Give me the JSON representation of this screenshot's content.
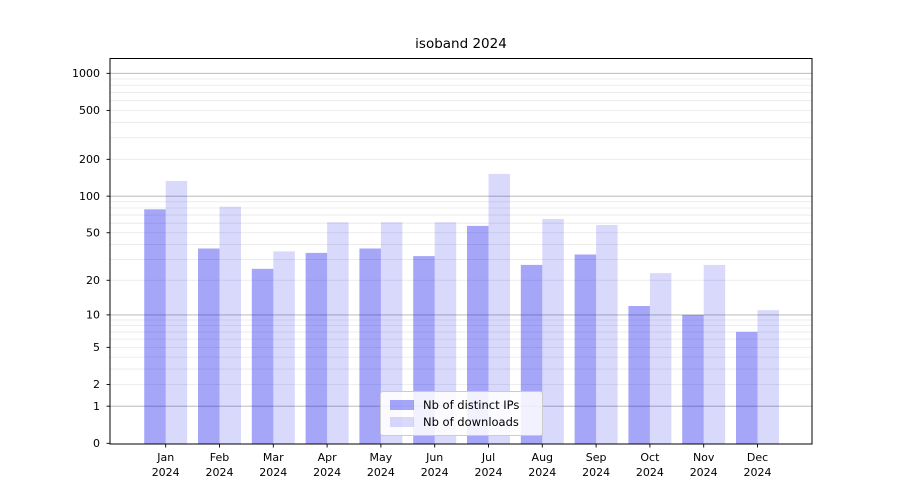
{
  "chart_data": {
    "type": "bar",
    "title": "isoband 2024",
    "categories": [
      "Jan 2024",
      "Feb 2024",
      "Mar 2024",
      "Apr 2024",
      "May 2024",
      "Jun 2024",
      "Jul 2024",
      "Aug 2024",
      "Sep 2024",
      "Oct 2024",
      "Nov 2024",
      "Dec 2024"
    ],
    "series": [
      {
        "name": "Nb of distinct IPs",
        "color": "rgba(0,0,238,0.35)",
        "values": [
          78,
          37,
          25,
          34,
          37,
          32,
          57,
          27,
          33,
          12,
          10,
          7
        ]
      },
      {
        "name": "Nb of downloads",
        "color": "rgba(0,0,238,0.15)",
        "values": [
          133,
          82,
          35,
          61,
          61,
          61,
          152,
          65,
          58,
          23,
          27,
          11
        ]
      }
    ],
    "xlabel": "",
    "ylabel": "",
    "yscale": "log1p",
    "yticks": [
      0,
      1,
      2,
      5,
      10,
      20,
      50,
      100,
      200,
      500,
      1000
    ],
    "ylim": [
      0,
      1320
    ],
    "grid": true,
    "legend_position": "lower center",
    "colors": {
      "major_grid": "#b0b0b0",
      "minor_grid": "#e8e8e8",
      "axis": "#000000",
      "text": "#000000",
      "background": "#ffffff"
    }
  }
}
